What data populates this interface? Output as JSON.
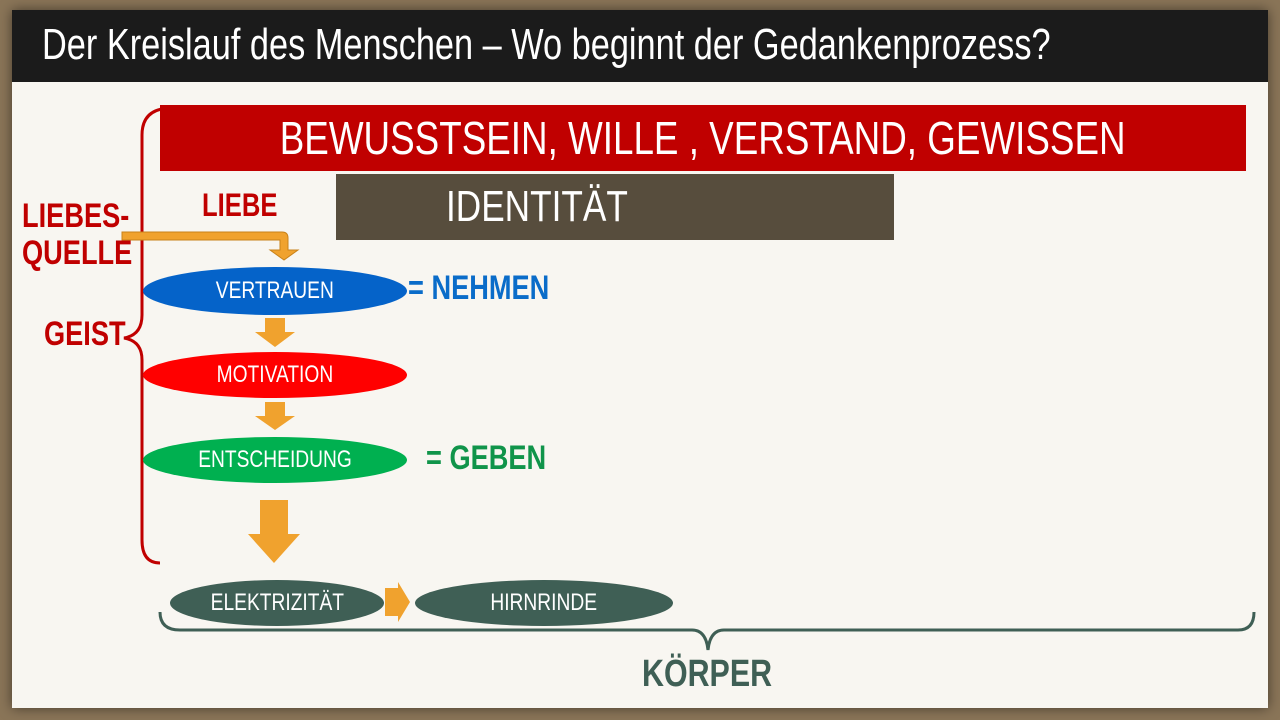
{
  "title": "Der Kreislauf des Menschen – Wo beginnt der Gedankenprozess?",
  "top_banner": "BEWUSSTSEIN, WILLE , VERSTAND, GEWISSEN",
  "identity": "IDENTITÄT",
  "liebe": "LIEBE",
  "liebesquelle": [
    "LIEBES-",
    "QUELLE"
  ],
  "geist": "GEIST",
  "nodes": {
    "vertrauen": "VERTRAUEN",
    "motivation": "MOTIVATION",
    "entscheidung": "ENTSCHEIDUNG",
    "elektrizitaet": "ELEKTRIZITÄT",
    "hirnrinde": "HIRNRINDE"
  },
  "nehmen": "= NEHMEN",
  "geben": "= GEBEN",
  "koerper": "KÖRPER",
  "colors": {
    "red": "#c00000",
    "brown": "#574d3d",
    "blue": "#0563c9",
    "bright_red": "#ff0000",
    "green": "#00b050",
    "dark_green": "#3f5f55",
    "orange": "#f0a22e",
    "nehmen": "#0a6cc9",
    "geben": "#10944a"
  }
}
